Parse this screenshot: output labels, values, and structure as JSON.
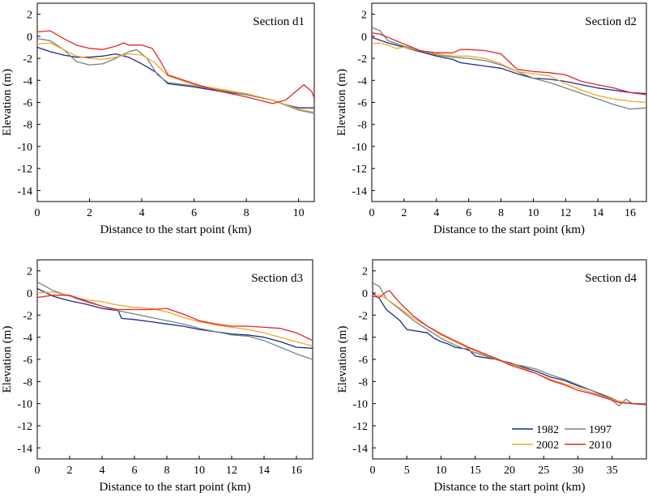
{
  "colors": {
    "1982": "#1f2a8a",
    "1997": "#6f8782",
    "2002": "#f5a623",
    "2010": "#e0262a"
  },
  "legend": [
    "1982",
    "1997",
    "2002",
    "2010"
  ],
  "chart_data": [
    {
      "type": "line",
      "title": "Section d1",
      "xlabel": "Distance to the start point (km)",
      "ylabel": "Elevation (m)",
      "xlim": [
        0,
        10.6
      ],
      "ylim": [
        -15,
        3
      ],
      "xticks": [
        0,
        2,
        4,
        6,
        8,
        10
      ],
      "yticks": [
        2,
        0,
        -2,
        -4,
        -6,
        -8,
        -10,
        -12,
        -14
      ],
      "series": [
        {
          "name": "1982",
          "x": [
            0,
            0.5,
            1,
            1.5,
            2,
            2.5,
            3,
            3.5,
            4,
            4.5,
            5,
            6,
            7,
            8,
            9,
            9.5,
            10,
            10.6
          ],
          "y": [
            -1,
            -1.4,
            -1.7,
            -1.9,
            -1.9,
            -1.8,
            -1.6,
            -1.9,
            -2.5,
            -3.2,
            -4.3,
            -4.6,
            -5,
            -5.3,
            -5.8,
            -6.2,
            -6.5,
            -6.5
          ]
        },
        {
          "name": "1997",
          "x": [
            0,
            0.5,
            1,
            1.5,
            2,
            2.5,
            3,
            3.5,
            3.8,
            4.2,
            4.6,
            5,
            6,
            7,
            8,
            9,
            10,
            10.6
          ],
          "y": [
            -0.2,
            -0.4,
            -1.2,
            -2.3,
            -2.6,
            -2.5,
            -2,
            -1.4,
            -1.2,
            -2,
            -3.5,
            -4.2,
            -4.5,
            -4.9,
            -5.3,
            -5.8,
            -6.7,
            -7
          ]
        },
        {
          "name": "2002",
          "x": [
            0,
            0.5,
            1,
            1.5,
            2,
            2.5,
            3,
            3.5,
            4,
            4.5,
            5,
            6,
            7,
            8,
            9,
            10,
            10.6
          ],
          "y": [
            -0.7,
            -0.6,
            -1.2,
            -1.8,
            -2,
            -2.1,
            -1.9,
            -1.6,
            -1.7,
            -2.4,
            -3.6,
            -4.4,
            -4.8,
            -5.2,
            -5.8,
            -6.6,
            -6.9
          ]
        },
        {
          "name": "2010",
          "x": [
            0,
            0.5,
            1,
            1.5,
            2,
            2.5,
            3,
            3.3,
            3.5,
            4,
            4.4,
            4.7,
            5,
            6,
            7,
            8,
            9,
            9.5,
            9.8,
            10.2,
            10.5,
            10.6
          ],
          "y": [
            0.4,
            0.5,
            -0.2,
            -0.8,
            -1.1,
            -1.2,
            -0.9,
            -0.6,
            -0.8,
            -0.8,
            -1.1,
            -2.2,
            -3.5,
            -4.3,
            -5,
            -5.5,
            -6.1,
            -5.8,
            -5.2,
            -4.4,
            -5,
            -5.6
          ]
        }
      ]
    },
    {
      "type": "line",
      "title": "Section d2",
      "xlabel": "Distance to the start point (km)",
      "ylabel": "Elevation (m)",
      "xlim": [
        0,
        17
      ],
      "ylim": [
        -15,
        3
      ],
      "xticks": [
        0,
        2,
        4,
        6,
        8,
        10,
        12,
        14,
        16
      ],
      "yticks": [
        2,
        0,
        -2,
        -4,
        -6,
        -8,
        -10,
        -12,
        -14
      ],
      "series": [
        {
          "name": "1982",
          "x": [
            0,
            1,
            2,
            3,
            4,
            5,
            5.5,
            6,
            7,
            8,
            9,
            10,
            11,
            12,
            13,
            14,
            15,
            16,
            17
          ],
          "y": [
            -0.1,
            -0.6,
            -1,
            -1.4,
            -1.8,
            -2.1,
            -2.4,
            -2.5,
            -2.7,
            -2.9,
            -3.4,
            -3.8,
            -3.9,
            -4.1,
            -4.4,
            -4.7,
            -4.9,
            -5.1,
            -5.2
          ]
        },
        {
          "name": "1997",
          "x": [
            0,
            0.5,
            1,
            2,
            3,
            4,
            5,
            6,
            7,
            8,
            9,
            10,
            11,
            12,
            13,
            14,
            15,
            16,
            17
          ],
          "y": [
            0.8,
            0.5,
            -0.4,
            -0.9,
            -1.3,
            -1.7,
            -1.9,
            -2,
            -2.2,
            -2.6,
            -3.2,
            -3.8,
            -4.2,
            -4.7,
            -5.2,
            -5.7,
            -6.2,
            -6.6,
            -6.5
          ]
        },
        {
          "name": "2002",
          "x": [
            0,
            0.5,
            1,
            1.5,
            2,
            3,
            4,
            5,
            6,
            7,
            8,
            9,
            10,
            11,
            12,
            13,
            14,
            15,
            16,
            17
          ],
          "y": [
            -0.7,
            -0.6,
            -0.8,
            -1.1,
            -1,
            -1.3,
            -1.6,
            -1.8,
            -1.8,
            -2,
            -2.5,
            -3.2,
            -3.4,
            -3.6,
            -4.3,
            -4.9,
            -5.4,
            -5.7,
            -5.9,
            -6
          ]
        },
        {
          "name": "2010",
          "x": [
            0,
            0.5,
            1,
            2,
            3,
            4,
            5,
            5.5,
            6,
            7,
            8,
            8.5,
            9,
            10,
            11,
            12,
            13,
            14,
            15,
            16,
            17
          ],
          "y": [
            0.3,
            0.2,
            -0.1,
            -0.7,
            -1.3,
            -1.5,
            -1.5,
            -1.2,
            -1.2,
            -1.3,
            -1.6,
            -2.3,
            -3,
            -3.2,
            -3.3,
            -3.5,
            -4.1,
            -4.4,
            -4.7,
            -5.1,
            -5.3
          ]
        }
      ]
    },
    {
      "type": "line",
      "title": "Section d3",
      "xlabel": "Distance to the start point (km)",
      "ylabel": "Elevation (m)",
      "xlim": [
        0,
        17
      ],
      "ylim": [
        -15,
        3
      ],
      "xticks": [
        0,
        2,
        4,
        6,
        8,
        10,
        12,
        14,
        16
      ],
      "yticks": [
        2,
        0,
        -2,
        -4,
        -6,
        -8,
        -10,
        -12,
        -14
      ],
      "series": [
        {
          "name": "1982",
          "x": [
            0,
            1,
            2,
            3,
            4,
            5,
            5.2,
            6,
            7,
            8,
            9,
            10,
            11,
            12,
            13,
            14,
            15,
            16,
            17
          ],
          "y": [
            0.4,
            -0.3,
            -0.7,
            -1,
            -1.4,
            -1.6,
            -2.3,
            -2.4,
            -2.6,
            -2.8,
            -3,
            -3.3,
            -3.5,
            -3.7,
            -3.8,
            -4,
            -4.4,
            -4.9,
            -5
          ]
        },
        {
          "name": "1997",
          "x": [
            0,
            0.5,
            1,
            2,
            3,
            4,
            5,
            6,
            7,
            8,
            9,
            10,
            11,
            12,
            13,
            14,
            15,
            16,
            17
          ],
          "y": [
            1,
            0.6,
            0.2,
            -0.3,
            -0.8,
            -1.2,
            -1.6,
            -1.9,
            -2.2,
            -2.5,
            -2.8,
            -3.2,
            -3.5,
            -3.8,
            -3.9,
            -4.3,
            -4.9,
            -5.5,
            -6
          ]
        },
        {
          "name": "2002",
          "x": [
            0,
            1,
            2,
            3,
            4,
            5,
            6,
            7,
            8,
            9,
            10,
            11,
            12,
            13,
            14,
            15,
            16,
            17
          ],
          "y": [
            0,
            0.1,
            -0.3,
            -0.6,
            -0.8,
            -1.1,
            -1.3,
            -1.4,
            -1.7,
            -2.2,
            -2.6,
            -2.9,
            -3.1,
            -3.3,
            -3.6,
            -4,
            -4.4,
            -4.8
          ]
        },
        {
          "name": "2010",
          "x": [
            0,
            1,
            2,
            3,
            4,
            5,
            6,
            7,
            8,
            9,
            10,
            11,
            12,
            13,
            14,
            15,
            16,
            17
          ],
          "y": [
            -0.4,
            -0.2,
            -0.2,
            -0.7,
            -1.2,
            -1.5,
            -1.5,
            -1.5,
            -1.4,
            -1.9,
            -2.5,
            -2.8,
            -3,
            -3,
            -3.1,
            -3.2,
            -3.6,
            -4.3
          ]
        }
      ]
    },
    {
      "type": "line",
      "title": "Section d4",
      "xlabel": "Distance to the start point (km)",
      "ylabel": "Elevation (m)",
      "xlim": [
        0,
        40
      ],
      "ylim": [
        -15,
        3
      ],
      "xticks": [
        0,
        5,
        10,
        15,
        20,
        25,
        30,
        35
      ],
      "yticks": [
        2,
        0,
        -2,
        -4,
        -6,
        -8,
        -10,
        -12,
        -14
      ],
      "legend_position": "bottom-right",
      "series": [
        {
          "name": "1982",
          "x": [
            0,
            1,
            2,
            3,
            4,
            5,
            7,
            8,
            9,
            10,
            11,
            12,
            13,
            14,
            15,
            16,
            18,
            20,
            22,
            24,
            26,
            28,
            30,
            32,
            34,
            36,
            38,
            40
          ],
          "y": [
            0,
            -0.5,
            -1.5,
            -2,
            -2.5,
            -3.3,
            -3.5,
            -3.6,
            -4.1,
            -4.4,
            -4.6,
            -4.9,
            -5,
            -5.1,
            -5.7,
            -5.8,
            -6,
            -6.3,
            -6.7,
            -7.1,
            -7.6,
            -7.9,
            -8.4,
            -8.8,
            -9.3,
            -9.8,
            -10,
            -10.1
          ]
        },
        {
          "name": "1997",
          "x": [
            0,
            1,
            2,
            3,
            4,
            6,
            8,
            10,
            12,
            14,
            16,
            18,
            20,
            22,
            24,
            26,
            28,
            30,
            32,
            34,
            35,
            36,
            37,
            38,
            40
          ],
          "y": [
            0.9,
            0.6,
            -0.5,
            -1,
            -1.5,
            -2.5,
            -3.3,
            -4.1,
            -4.7,
            -5.2,
            -5.6,
            -6,
            -6.4,
            -6.6,
            -6.9,
            -7.4,
            -7.8,
            -8.3,
            -8.8,
            -9.4,
            -9.7,
            -10.2,
            -9.6,
            -10,
            -10
          ]
        },
        {
          "name": "2002",
          "x": [
            0,
            1,
            2,
            4,
            6,
            8,
            10,
            12,
            14,
            16,
            18,
            20,
            22,
            24,
            26,
            28,
            30,
            32,
            34,
            36,
            38,
            40
          ],
          "y": [
            -0.3,
            -0.2,
            -0.5,
            -1.4,
            -2.3,
            -3,
            -3.8,
            -4.4,
            -5,
            -5.5,
            -5.9,
            -6.4,
            -6.8,
            -7.3,
            -7.8,
            -8.2,
            -8.6,
            -9,
            -9.4,
            -9.8,
            -10,
            -10.1
          ]
        },
        {
          "name": "2010",
          "x": [
            0,
            1,
            2,
            2.5,
            3,
            4,
            6,
            8,
            10,
            12,
            14,
            16,
            18,
            20,
            22,
            24,
            26,
            28,
            30,
            32,
            34,
            36,
            38,
            40
          ],
          "y": [
            -0.3,
            -0.4,
            0.1,
            0.2,
            -0.2,
            -0.9,
            -2.1,
            -3,
            -3.7,
            -4.3,
            -4.9,
            -5.4,
            -5.9,
            -6.5,
            -6.9,
            -7.3,
            -7.9,
            -8.3,
            -8.8,
            -9.1,
            -9.5,
            -9.9,
            -10,
            -10.1
          ]
        }
      ]
    }
  ]
}
